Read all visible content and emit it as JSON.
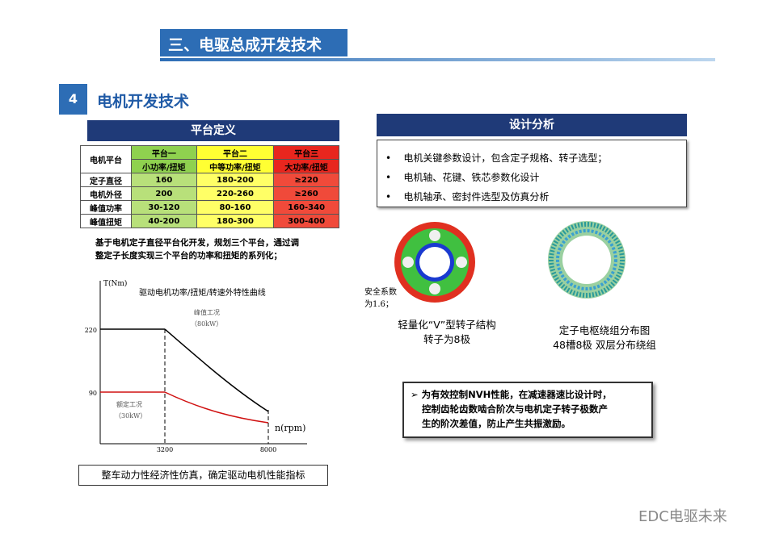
{
  "header": {
    "title": "三、电驱总成开发技术"
  },
  "section": {
    "number": "4",
    "title": "电机开发技术"
  },
  "platform": {
    "title": "平台定义",
    "table": {
      "corner": "电机平台",
      "platforms": [
        "平台一",
        "平台二",
        "平台三"
      ],
      "subtitles": [
        "小功率/扭矩",
        "中等功率/扭矩",
        "大功率/扭矩"
      ],
      "rows": [
        [
          "定子直径",
          "160",
          "180-200",
          "≥220"
        ],
        [
          "电机外径",
          "200",
          "220-260",
          "≥260"
        ],
        [
          "峰值功率",
          "30-120",
          "80-160",
          "160-340"
        ],
        [
          "峰值扭矩",
          "40-200",
          "180-300",
          "300-400"
        ]
      ]
    },
    "note": [
      "基于电机定子直径平台化开发，规划三个平台，通过调",
      "整定子长度实现三个平台的功率和扭矩的系列化；"
    ]
  },
  "curve": {
    "title": "驱动电机功率/扭矩/转速外特性曲线",
    "y_label": "T(Nm)",
    "x_label": "n(rpm)",
    "y_ticks": [
      "220",
      "90"
    ],
    "x_ticks": [
      "3200",
      "8000"
    ],
    "peak": [
      "峰值工况",
      "（80kW）"
    ],
    "rated": [
      "额定工况",
      "（30kW）"
    ]
  },
  "caption": "整车动力性经济性仿真，确定驱动电机性能指标",
  "design": {
    "title": "设计分析",
    "bullets": [
      "电机关键参数设计，包含定子规格、转子选型；",
      "电机轴、花键、铁芯参数化设计",
      "电机轴承、密封件选型及仿真分析"
    ],
    "safety": [
      "安全系数",
      "为1.6；"
    ],
    "rotor": [
      "轻量化“V”型转子结构",
      "转子为8极"
    ],
    "stator": [
      "定子电枢绕组分布图",
      "48槽8极 双层分布绕组"
    ]
  },
  "nvh": [
    "为有效控制NVH性能，在减速器速比设计时，",
    "控制齿轮齿数啮合阶次与电机定子转子极数产",
    "生的阶次差值，防止产生共振激励。"
  ],
  "watermark": "EDC电驱未来"
}
